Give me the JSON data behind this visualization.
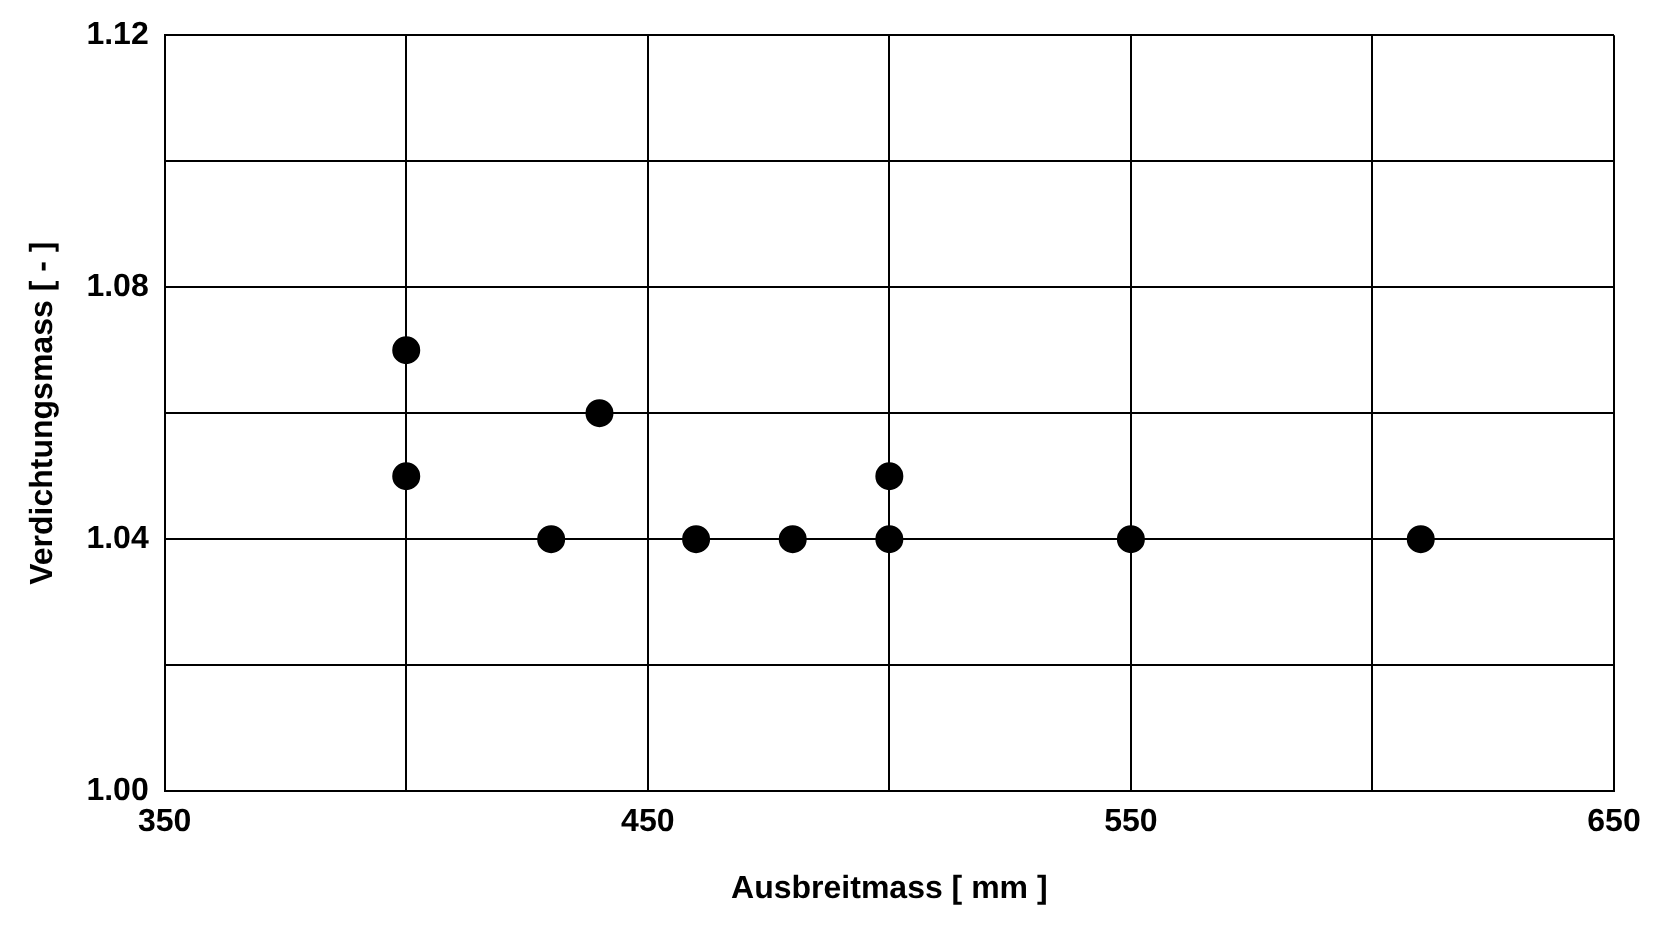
{
  "chart_data": {
    "type": "scatter",
    "xlabel": "Ausbreitmass [ mm ]",
    "ylabel": "Verdichtungsmass [ - ]",
    "x": [
      400,
      400,
      430,
      440,
      460,
      480,
      500,
      500,
      550,
      610
    ],
    "values": [
      1.07,
      1.05,
      1.04,
      1.06,
      1.04,
      1.04,
      1.05,
      1.04,
      1.04,
      1.04
    ],
    "color": "#000000",
    "marker": "circle",
    "xlim": [
      350,
      650
    ],
    "xticks": [
      350,
      {
        "value": 400,
        "label": null
      },
      450,
      {
        "value": 500,
        "label": null
      },
      550,
      {
        "value": 600,
        "label": null
      },
      650
    ],
    "ylim": [
      1.0,
      1.12
    ],
    "yticks": [
      {
        "value": 1.0,
        "label": "1.00"
      },
      {
        "value": 1.02,
        "label": null
      },
      1.04,
      {
        "value": 1.06,
        "label": null
      },
      1.08,
      {
        "value": 1.1,
        "label": null
      },
      1.12
    ],
    "grid": true,
    "legend": false
  }
}
